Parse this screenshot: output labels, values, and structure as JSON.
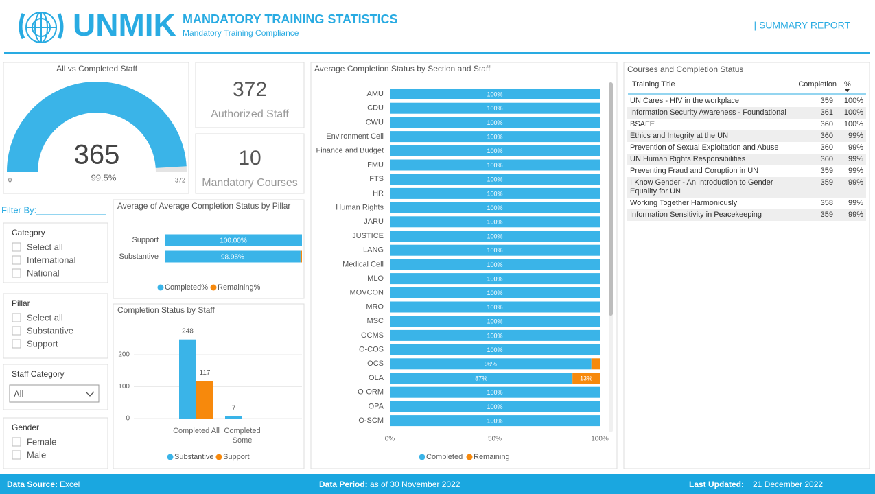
{
  "header": {
    "logo_text": "UNMIK",
    "title": "MANDATORY TRAINING STATISTICS",
    "subtitle": "Mandatory Training Compliance",
    "report_label": "| SUMMARY REPORT"
  },
  "kpis": [
    {
      "value": 372,
      "label": "Authorized Staff"
    },
    {
      "value": 10,
      "label": "Mandatory Courses"
    }
  ],
  "filters": {
    "heading": "Filter By:",
    "groups": [
      {
        "title": "Category",
        "options": [
          "Select all",
          "International",
          "National"
        ]
      },
      {
        "title": "Pillar",
        "options": [
          "Select all",
          "Substantive",
          "Support"
        ]
      },
      {
        "title": "Staff Category",
        "selected": "All"
      },
      {
        "title": "Gender",
        "options": [
          "Female",
          "Male"
        ]
      }
    ]
  },
  "chart_data": [
    {
      "type": "gauge",
      "title": "All vs Completed Staff",
      "values": [
        365
      ],
      "ylim": [
        0,
        372
      ],
      "yticks": [
        0,
        372
      ],
      "percent": {
        "value": 99.5,
        "label": "99.5%"
      },
      "color": "#3ab4e8",
      "track_color": "#e4e4e4"
    },
    {
      "type": "hbar",
      "title": "Average of Average Completion Status by Pillar",
      "categories": [
        "Support",
        "Substantive"
      ],
      "series": [
        {
          "name": "Completed%",
          "color": "#3ab4e8",
          "values": [
            100,
            98.95
          ],
          "value_labels": [
            "100.00%",
            "98.95%"
          ]
        },
        {
          "name": "Remaining%",
          "color": "#f7890c",
          "values": [
            0,
            1.05
          ]
        }
      ],
      "xlim": [
        0,
        100
      ],
      "stacked": true,
      "legend": "bottom"
    },
    {
      "type": "bar",
      "title": "Completion Status by Staff",
      "categories": [
        "Completed All",
        "Completed Some"
      ],
      "series": [
        {
          "name": "Substantive",
          "color": "#3ab4e8",
          "values": [
            248,
            7
          ]
        },
        {
          "name": "Support",
          "color": "#f7890c",
          "values": [
            117,
            null
          ]
        }
      ],
      "ylim": [
        0,
        300
      ],
      "yticks": [
        0,
        100,
        200
      ],
      "grid": true,
      "data_labels": true,
      "legend": "bottom"
    },
    {
      "type": "hbar",
      "title": "Average Completion Status by Section and Staff",
      "categories": [
        "AMU",
        "CDU",
        "CWU",
        "Environment Cell",
        "Finance and Budget",
        "FMU",
        "FTS",
        "HR",
        "Human Rights",
        "JARU",
        "JUSTICE",
        "LANG",
        "Medical Cell",
        "MLO",
        "MOVCON",
        "MRO",
        "MSC",
        "OCMS",
        "O-COS",
        "OCS",
        "OLA",
        "O-ORM",
        "OPA",
        "O-SCM"
      ],
      "series": [
        {
          "name": "Completed",
          "color": "#3ab4e8",
          "values": [
            100,
            100,
            100,
            100,
            100,
            100,
            100,
            100,
            100,
            100,
            100,
            100,
            100,
            100,
            100,
            100,
            100,
            100,
            100,
            96,
            87,
            100,
            100,
            100
          ],
          "value_labels": [
            "100%",
            "100%",
            "100%",
            "100%",
            "100%",
            "100%",
            "100%",
            "100%",
            "100%",
            "100%",
            "100%",
            "100%",
            "100%",
            "100%",
            "100%",
            "100%",
            "100%",
            "100%",
            "100%",
            "96%",
            "87%",
            "100%",
            "100%",
            "100%"
          ]
        },
        {
          "name": "Remaining",
          "color": "#f7890c",
          "values": [
            0,
            0,
            0,
            0,
            0,
            0,
            0,
            0,
            0,
            0,
            0,
            0,
            0,
            0,
            0,
            0,
            0,
            0,
            0,
            4,
            13,
            0,
            0,
            0
          ],
          "value_labels": [
            null,
            null,
            null,
            null,
            null,
            null,
            null,
            null,
            null,
            null,
            null,
            null,
            null,
            null,
            null,
            null,
            null,
            null,
            null,
            null,
            "13%",
            null,
            null,
            null
          ]
        }
      ],
      "xlim": [
        0,
        100
      ],
      "xticks": [
        {
          "value": 0,
          "label": "0%"
        },
        {
          "value": 50,
          "label": "50%"
        },
        {
          "value": 100,
          "label": "100%"
        }
      ],
      "stacked": true,
      "legend": "bottom"
    }
  ],
  "table": {
    "title": "Courses and Completion Status",
    "columns": [
      "Training Title",
      "Completion",
      "%"
    ],
    "rows": [
      [
        "UN Cares - HIV in the workplace",
        359,
        "100%"
      ],
      [
        "Information Security Awareness - Foundational",
        361,
        "100%"
      ],
      [
        "BSAFE",
        360,
        "100%"
      ],
      [
        "Ethics and Integrity at the UN",
        360,
        "99%"
      ],
      [
        "Prevention of Sexual Exploitation and Abuse",
        360,
        "99%"
      ],
      [
        "UN Human Rights Responsibilities",
        360,
        "99%"
      ],
      [
        "Preventing Fraud and Coruption in UN",
        359,
        "99%"
      ],
      [
        "I Know Gender - An Introduction to Gender Equality for UN",
        359,
        "99%"
      ],
      [
        "Working Together Harmoniously",
        358,
        "99%"
      ],
      [
        "Information Sensitivity in Peacekeeping",
        359,
        "99%"
      ]
    ]
  },
  "footer": [
    {
      "label": "Data Source:",
      "value": "Excel"
    },
    {
      "label": "Data Period:",
      "value": "as of 30 November 2022"
    },
    {
      "label": "Last Updated:",
      "value": "21 December 2022"
    }
  ]
}
